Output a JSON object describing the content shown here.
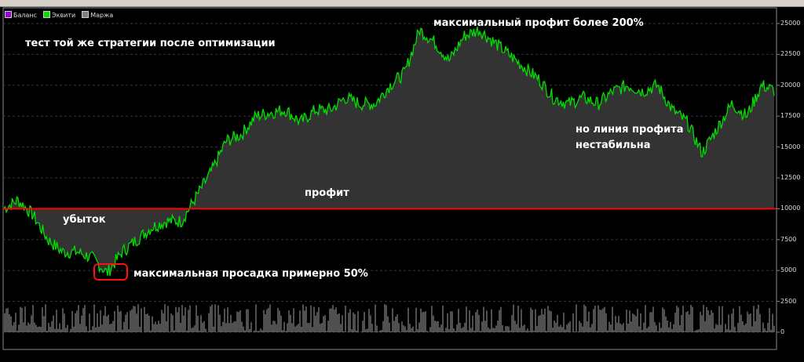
{
  "legend": [
    {
      "label": "Баланс",
      "color": "#9b00e0"
    },
    {
      "label": "Эквити",
      "color": "#00e000"
    },
    {
      "label": "Маржа",
      "color": "#808080"
    }
  ],
  "annotations": {
    "title": "тест той же стратегии после оптимизации",
    "max_profit": "максимальный профит более 200%",
    "unstable": "но линия профита",
    "unstable2": "нестабильна",
    "profit": "профит",
    "loss": "убыток",
    "drawdown": "максимальная просадка  примерно 50%"
  },
  "chart_data": {
    "type": "line",
    "ylim": [
      0,
      26000
    ],
    "yticks": [
      "25000",
      "22500",
      "20000",
      "17500",
      "15000",
      "12500",
      "10000",
      "7500",
      "5000",
      "2500",
      "0"
    ],
    "grid": true,
    "baseline": 10000,
    "colors": {
      "equity": "#00e000",
      "fill": "#333333",
      "baseline": "#ff0000",
      "margin": "#a0a0a0"
    },
    "series": [
      {
        "name": "Эквити",
        "values": [
          10000,
          10700,
          9500,
          7500,
          6500,
          6500,
          6000,
          4800,
          6500,
          7500,
          8500,
          9000,
          9000,
          11000,
          13000,
          15500,
          16000,
          17500,
          17800,
          18000,
          17000,
          18000,
          18000,
          19000,
          18500,
          18500,
          20000,
          21000,
          24500,
          23500,
          22000,
          24000,
          24500,
          23500,
          22500,
          21500,
          20500,
          19000,
          18500,
          19000,
          18500,
          19500,
          20000,
          19500,
          20000,
          18000,
          17000,
          14500,
          16500,
          18500,
          17500,
          20000,
          19500
        ]
      }
    ]
  }
}
